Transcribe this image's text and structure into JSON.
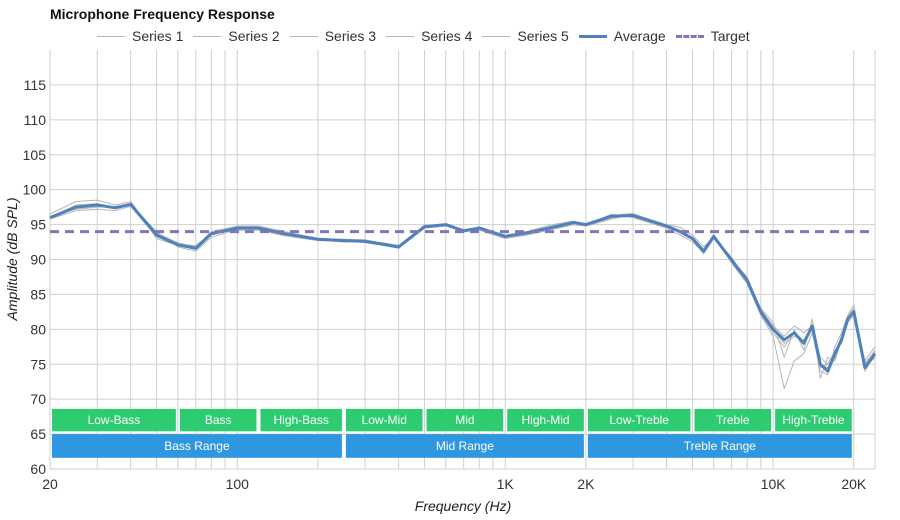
{
  "chart_data": {
    "type": "line",
    "title": "Microphone Frequency Response",
    "xlabel": "Frequency (Hz)",
    "ylabel": "Amplitude (dB SPL)",
    "x_scale": "log",
    "xlim": [
      20,
      24000
    ],
    "ylim": [
      60,
      120
    ],
    "x_ticks": [
      {
        "value": 20,
        "label": "20"
      },
      {
        "value": 100,
        "label": "100"
      },
      {
        "value": 1000,
        "label": "1K"
      },
      {
        "value": 2000,
        "label": "2K"
      },
      {
        "value": 10000,
        "label": "10K"
      },
      {
        "value": 20000,
        "label": "20K"
      }
    ],
    "y_ticks": [
      60,
      65,
      70,
      75,
      80,
      85,
      90,
      95,
      100,
      105,
      110,
      115
    ],
    "grid": true,
    "legend_position": "top",
    "series": [
      {
        "name": "Series 1",
        "color": "#b5b5b5",
        "style": "thin",
        "x": [
          20,
          25,
          30,
          35,
          40,
          50,
          60,
          70,
          80,
          100,
          120,
          150,
          200,
          250,
          300,
          400,
          500,
          600,
          700,
          800,
          1000,
          1200,
          1500,
          1800,
          2000,
          2500,
          3000,
          4000,
          4500,
          5000,
          5500,
          6000,
          7000,
          8000,
          9000,
          10000,
          11000,
          12000,
          13000,
          14000,
          15000,
          16000,
          17000,
          18000,
          19000,
          20000,
          22000,
          24000
        ],
        "y": [
          96.5,
          98.3,
          98.5,
          97.8,
          98.3,
          93.0,
          92.0,
          91.5,
          93.5,
          94.5,
          94.5,
          93.5,
          93.0,
          92.8,
          92.6,
          91.8,
          94.8,
          95.0,
          94.0,
          94.7,
          93.5,
          94.0,
          95.0,
          95.5,
          95.0,
          96.5,
          96.0,
          94.5,
          93.5,
          92.5,
          91.0,
          93.5,
          89.5,
          86.5,
          82.0,
          79.0,
          71.5,
          75.5,
          76.5,
          79.5,
          74.0,
          73.5,
          77.5,
          79.5,
          82.0,
          83.5,
          74.5,
          76.0
        ]
      },
      {
        "name": "Series 2",
        "color": "#b5b5b5",
        "style": "thin",
        "x": [
          20,
          25,
          30,
          35,
          40,
          50,
          60,
          70,
          80,
          100,
          120,
          150,
          200,
          250,
          300,
          400,
          500,
          600,
          700,
          800,
          1000,
          1200,
          1500,
          1800,
          2000,
          2500,
          3000,
          4000,
          4500,
          5000,
          5500,
          6000,
          7000,
          8000,
          9000,
          10000,
          11000,
          12000,
          13000,
          14000,
          15000,
          16000,
          17000,
          18000,
          19000,
          20000,
          22000,
          24000
        ],
        "y": [
          95.8,
          97.0,
          97.2,
          97.0,
          97.6,
          93.3,
          92.2,
          92.0,
          93.8,
          94.2,
          94.2,
          93.4,
          92.7,
          92.6,
          92.5,
          91.6,
          94.5,
          94.8,
          94.1,
          94.2,
          93.0,
          93.5,
          94.3,
          95.0,
          94.8,
          95.8,
          96.5,
          95.0,
          94.6,
          93.5,
          91.8,
          93.2,
          90.3,
          87.0,
          83.0,
          81.0,
          76.0,
          80.0,
          77.0,
          81.5,
          73.0,
          76.0,
          75.5,
          78.5,
          81.5,
          82.5,
          75.5,
          77.5
        ]
      },
      {
        "name": "Series 3",
        "color": "#b5b5b5",
        "style": "thin",
        "x": [
          20,
          25,
          30,
          35,
          40,
          50,
          60,
          70,
          80,
          100,
          120,
          150,
          200,
          250,
          300,
          400,
          500,
          600,
          700,
          800,
          1000,
          1200,
          1500,
          1800,
          2000,
          2500,
          3000,
          4000,
          4500,
          5000,
          5500,
          6000,
          7000,
          8000,
          9000,
          10000,
          11000,
          12000,
          13000,
          14000,
          15000,
          16000,
          17000,
          18000,
          19000,
          20000,
          22000,
          24000
        ],
        "y": [
          96.0,
          97.6,
          97.8,
          97.3,
          98.0,
          93.8,
          92.4,
          91.8,
          94.0,
          94.8,
          94.8,
          94.0,
          93.0,
          92.9,
          92.8,
          92.0,
          94.9,
          95.0,
          94.3,
          94.6,
          93.4,
          93.8,
          94.6,
          95.3,
          95.1,
          96.3,
          96.6,
          94.8,
          94.0,
          93.2,
          91.2,
          93.6,
          90.0,
          87.5,
          82.5,
          80.0,
          78.0,
          79.0,
          78.5,
          80.0,
          75.0,
          74.5,
          76.5,
          79.0,
          82.0,
          83.0,
          74.0,
          76.5
        ]
      },
      {
        "name": "Series 4",
        "color": "#b5b5b5",
        "style": "thin",
        "x": [
          20,
          25,
          30,
          35,
          40,
          50,
          60,
          70,
          80,
          100,
          120,
          150,
          200,
          250,
          300,
          400,
          500,
          600,
          700,
          800,
          1000,
          1200,
          1500,
          1800,
          2000,
          2500,
          3000,
          4000,
          4500,
          5000,
          5500,
          6000,
          7000,
          8000,
          9000,
          10000,
          11000,
          12000,
          13000,
          14000,
          15000,
          16000,
          17000,
          18000,
          19000,
          20000,
          22000,
          24000
        ],
        "y": [
          96.2,
          97.2,
          97.5,
          97.6,
          97.8,
          94.0,
          91.8,
          91.2,
          93.2,
          94.3,
          94.6,
          93.8,
          92.9,
          92.7,
          92.4,
          91.7,
          94.7,
          94.9,
          94.2,
          94.5,
          93.2,
          93.9,
          94.8,
          95.4,
          94.9,
          96.0,
          96.3,
          94.7,
          93.8,
          92.8,
          90.8,
          93.0,
          89.8,
          86.8,
          82.8,
          80.5,
          79.0,
          80.5,
          79.5,
          80.5,
          76.0,
          75.0,
          77.0,
          78.0,
          81.0,
          82.0,
          75.0,
          77.0
        ]
      },
      {
        "name": "Series 5",
        "color": "#b5b5b5",
        "style": "thin",
        "x": [
          20,
          25,
          30,
          35,
          40,
          50,
          60,
          70,
          80,
          100,
          120,
          150,
          200,
          250,
          300,
          400,
          500,
          600,
          700,
          800,
          1000,
          1200,
          1500,
          1800,
          2000,
          2500,
          3000,
          4000,
          4500,
          5000,
          5500,
          6000,
          7000,
          8000,
          9000,
          10000,
          11000,
          12000,
          13000,
          14000,
          15000,
          16000,
          17000,
          18000,
          19000,
          20000,
          22000,
          24000
        ],
        "y": [
          96.0,
          97.8,
          98.0,
          97.4,
          97.9,
          93.6,
          92.0,
          91.6,
          93.6,
          94.6,
          94.4,
          93.6,
          92.8,
          92.5,
          92.6,
          91.9,
          94.6,
          95.1,
          94.0,
          94.4,
          93.3,
          93.7,
          94.5,
          95.2,
          95.0,
          96.2,
          96.2,
          94.9,
          94.1,
          93.0,
          91.0,
          93.4,
          90.1,
          87.2,
          82.2,
          79.5,
          77.5,
          79.5,
          78.0,
          80.0,
          74.5,
          75.0,
          76.0,
          78.8,
          81.5,
          82.8,
          75.2,
          76.8
        ]
      },
      {
        "name": "Average",
        "color": "#4f81bd",
        "style": "avg",
        "x": [
          20,
          25,
          30,
          35,
          40,
          50,
          60,
          70,
          80,
          100,
          120,
          150,
          200,
          250,
          300,
          400,
          500,
          600,
          700,
          800,
          1000,
          1200,
          1500,
          1800,
          2000,
          2500,
          3000,
          4000,
          4500,
          5000,
          5500,
          6000,
          7000,
          8000,
          9000,
          10000,
          11000,
          12000,
          13000,
          14000,
          15000,
          16000,
          17000,
          18000,
          19000,
          20000,
          22000,
          24000
        ],
        "y": [
          96.0,
          97.5,
          97.8,
          97.4,
          97.9,
          93.5,
          92.1,
          91.6,
          93.7,
          94.5,
          94.5,
          93.7,
          92.9,
          92.7,
          92.6,
          91.8,
          94.7,
          95.0,
          94.1,
          94.5,
          93.3,
          93.8,
          94.6,
          95.3,
          95.0,
          96.2,
          96.3,
          94.8,
          94.0,
          93.0,
          91.2,
          93.3,
          89.9,
          87.0,
          82.5,
          80.0,
          78.5,
          79.5,
          78.0,
          80.5,
          75.0,
          74.0,
          76.5,
          78.5,
          81.5,
          82.5,
          74.5,
          76.5
        ]
      },
      {
        "name": "Target",
        "color": "#7f77b5",
        "style": "target",
        "x": [
          20,
          24000
        ],
        "y": [
          94,
          94
        ]
      }
    ],
    "bands": [
      {
        "row": 1,
        "label": "Low-Bass",
        "from": 20,
        "to": 60,
        "color": "#2ecc71"
      },
      {
        "row": 1,
        "label": "Bass",
        "from": 60,
        "to": 120,
        "color": "#2ecc71"
      },
      {
        "row": 1,
        "label": "High-Bass",
        "from": 120,
        "to": 250,
        "color": "#2ecc71"
      },
      {
        "row": 1,
        "label": "Low-Mid",
        "from": 250,
        "to": 500,
        "color": "#2ecc71"
      },
      {
        "row": 1,
        "label": "Mid",
        "from": 500,
        "to": 1000,
        "color": "#2ecc71"
      },
      {
        "row": 1,
        "label": "High-Mid",
        "from": 1000,
        "to": 2000,
        "color": "#2ecc71"
      },
      {
        "row": 1,
        "label": "Low-Treble",
        "from": 2000,
        "to": 5000,
        "color": "#2ecc71"
      },
      {
        "row": 1,
        "label": "Treble",
        "from": 5000,
        "to": 10000,
        "color": "#2ecc71"
      },
      {
        "row": 1,
        "label": "High-Treble",
        "from": 10000,
        "to": 20000,
        "color": "#2ecc71"
      },
      {
        "row": 2,
        "label": "Bass Range",
        "from": 20,
        "to": 250,
        "color": "#2f97e0"
      },
      {
        "row": 2,
        "label": "Mid Range",
        "from": 250,
        "to": 2000,
        "color": "#2f97e0"
      },
      {
        "row": 2,
        "label": "Treble Range",
        "from": 2000,
        "to": 20000,
        "color": "#2f97e0"
      }
    ]
  }
}
